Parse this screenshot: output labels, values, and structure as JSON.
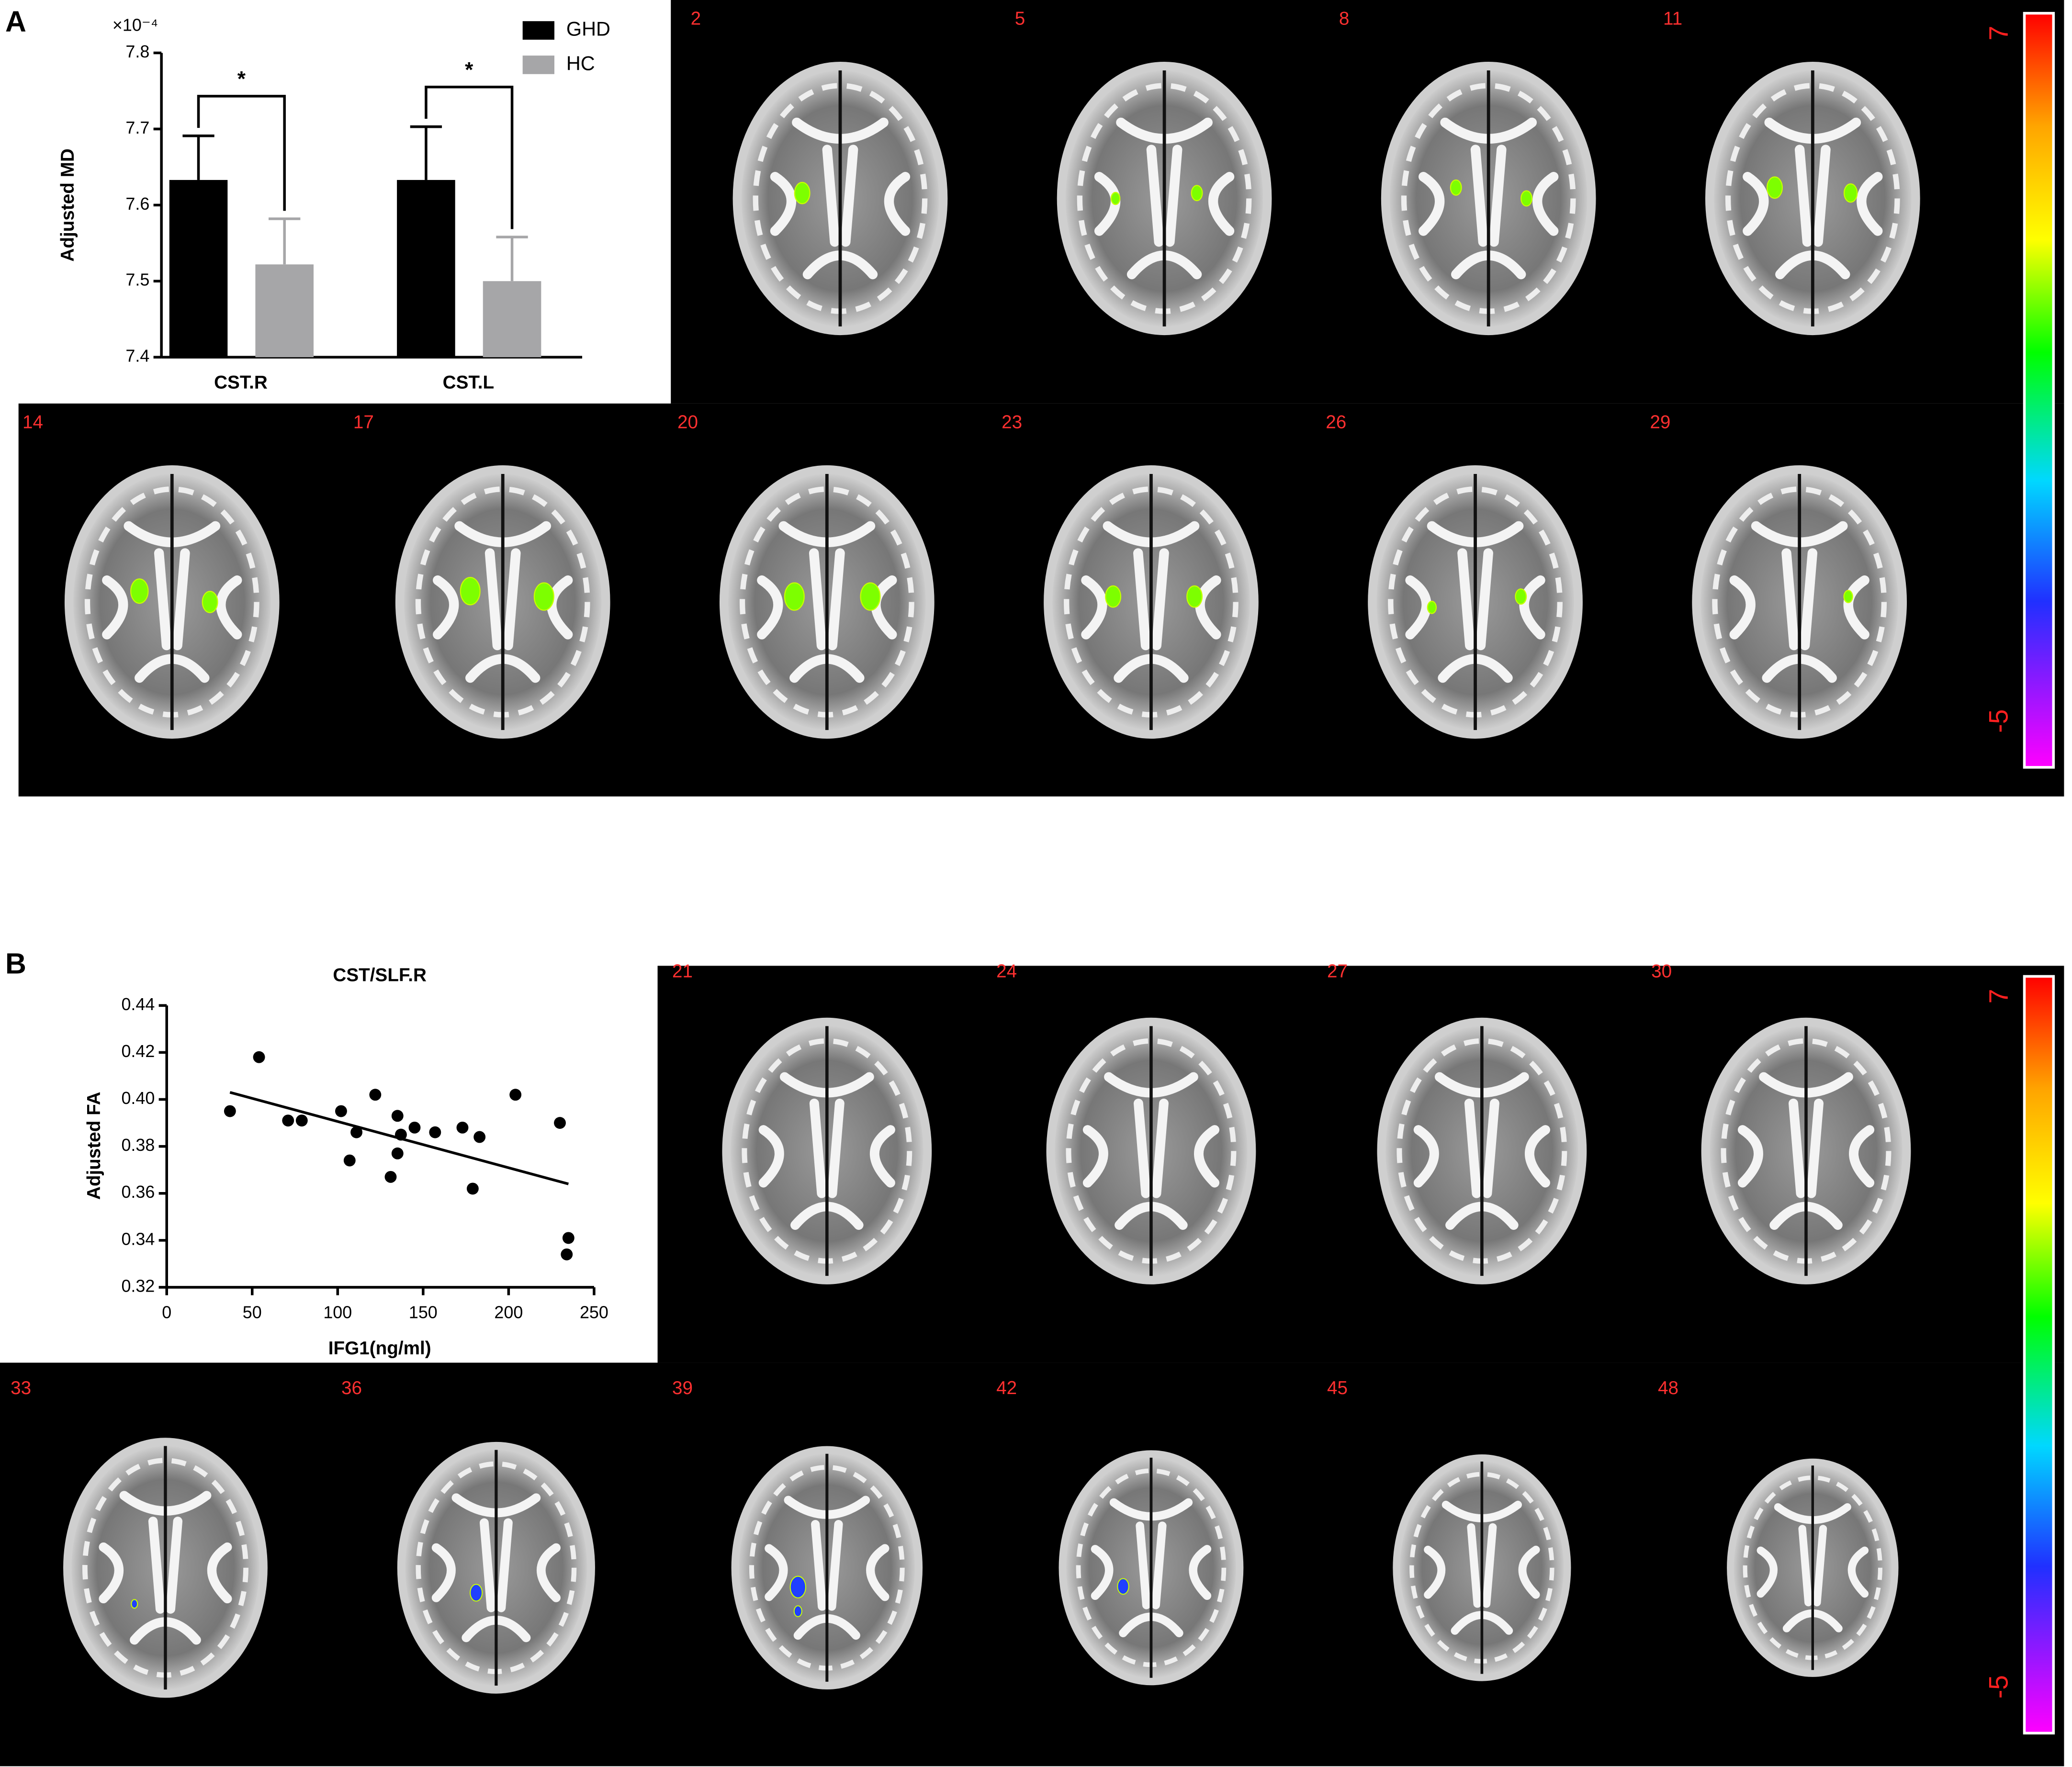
{
  "chart_data": [
    {
      "type": "bar",
      "y_label": "Adjusted MD",
      "y_scale_label": "×10⁻⁴",
      "categories": [
        "CST.R",
        "CST.L"
      ],
      "series": [
        {
          "name": "GHD",
          "color": "#000000",
          "values": [
            7.633,
            7.633
          ],
          "errors": [
            0.058,
            0.07
          ]
        },
        {
          "name": "HC",
          "color": "#a6a6a8",
          "values": [
            7.522,
            7.5
          ],
          "errors": [
            0.06,
            0.058
          ]
        }
      ],
      "annotations": [
        "*",
        "*"
      ],
      "ylim": [
        7.4,
        7.8
      ],
      "yticks": [
        7.4,
        7.5,
        7.6,
        7.7,
        7.8
      ]
    },
    {
      "type": "scatter",
      "title": "CST/SLF.R",
      "x_label": "IFG1(ng/ml)",
      "y_label": "Adjusted FA",
      "series": [
        {
          "color": "#000000",
          "x": [
            37,
            54,
            71,
            79,
            102,
            107,
            111,
            122,
            131,
            135,
            137,
            135,
            145,
            157,
            173,
            179,
            183,
            204,
            230,
            235,
            234
          ],
          "values": [
            0.395,
            0.418,
            0.391,
            0.391,
            0.395,
            0.374,
            0.386,
            0.402,
            0.367,
            0.393,
            0.385,
            0.377,
            0.388,
            0.386,
            0.388,
            0.362,
            0.384,
            0.402,
            0.39,
            0.341,
            0.334
          ]
        }
      ],
      "fit": {
        "x": [
          37,
          235
        ],
        "values": [
          0.403,
          0.364
        ]
      },
      "xlim": [
        0,
        250
      ],
      "xticks": [
        0,
        50,
        100,
        150,
        200,
        250
      ],
      "ylim": [
        0.32,
        0.44
      ],
      "yticks": [
        0.32,
        0.34,
        0.36,
        0.38,
        {
          "value": 0.4,
          "label": "0.40"
        },
        0.42,
        0.44
      ]
    }
  ],
  "figure": {
    "panel_labels": [
      "A",
      "B"
    ],
    "slices_a": [
      2,
      5,
      8,
      11,
      14,
      17,
      20,
      23,
      26,
      29
    ],
    "slices_b": [
      21,
      24,
      27,
      30,
      33,
      36,
      39,
      42,
      45,
      48
    ],
    "colorbar_max": "7",
    "colorbar_min": "-5"
  }
}
